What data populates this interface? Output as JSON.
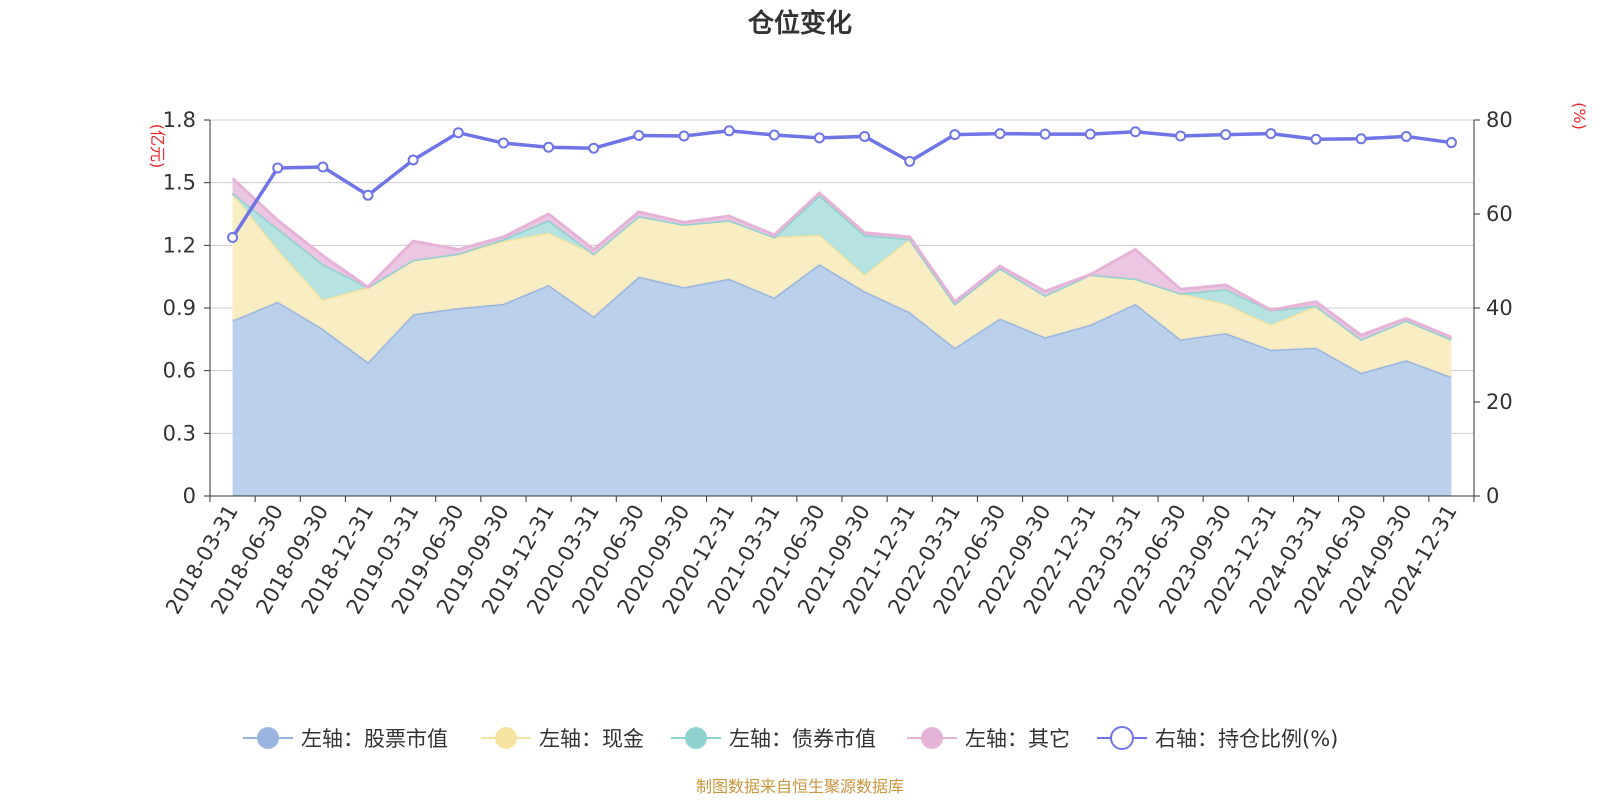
{
  "chart_data": {
    "type": "area",
    "title": "仓位变化",
    "left_unit": "(亿元)",
    "right_unit": "(%)",
    "ylim_left": [
      0,
      1.8
    ],
    "yticks_left": [
      "0",
      "0.3",
      "0.6",
      "0.9",
      "1.2",
      "1.5",
      "1.8"
    ],
    "ylim_right": [
      0,
      80
    ],
    "yticks_right": [
      "0",
      "20",
      "40",
      "60",
      "80"
    ],
    "categories": [
      "2018-03-31",
      "2018-06-30",
      "2018-09-30",
      "2018-12-31",
      "2019-03-31",
      "2019-06-30",
      "2019-09-30",
      "2019-12-31",
      "2020-03-31",
      "2020-06-30",
      "2020-09-30",
      "2020-12-31",
      "2021-03-31",
      "2021-06-30",
      "2021-09-30",
      "2021-12-31",
      "2022-03-31",
      "2022-06-30",
      "2022-09-30",
      "2022-12-31",
      "2023-03-31",
      "2023-06-30",
      "2023-09-30",
      "2023-12-31",
      "2024-03-31",
      "2024-06-30",
      "2024-09-30",
      "2024-12-31"
    ],
    "stacked_series": [
      {
        "name": "左轴：股票市值",
        "color": "#9ab6e0",
        "fill": "#b7cdea",
        "values": [
          0.84,
          0.93,
          0.8,
          0.64,
          0.87,
          0.9,
          0.92,
          1.01,
          0.86,
          1.05,
          1.0,
          1.04,
          0.95,
          1.11,
          0.98,
          0.88,
          0.71,
          0.85,
          0.76,
          0.82,
          0.92,
          0.75,
          0.78,
          0.7,
          0.71,
          0.59,
          0.65,
          0.57
        ]
      },
      {
        "name": "左轴：现金",
        "color": "#f7e3a1",
        "fill": "#f9ecc0",
        "values": [
          0.61,
          0.25,
          0.14,
          0.36,
          0.26,
          0.26,
          0.3,
          0.25,
          0.3,
          0.29,
          0.3,
          0.28,
          0.29,
          0.14,
          0.08,
          0.35,
          0.21,
          0.24,
          0.2,
          0.24,
          0.12,
          0.22,
          0.14,
          0.12,
          0.2,
          0.16,
          0.19,
          0.18
        ]
      },
      {
        "name": "左轴：债券市值",
        "color": "#8fd1cf",
        "fill": "#b2e1df",
        "values": [
          0,
          0.1,
          0.17,
          0,
          0,
          0,
          0.01,
          0.06,
          0,
          0,
          0,
          0,
          0,
          0.19,
          0.19,
          0,
          0,
          0,
          0,
          0,
          0,
          0,
          0.07,
          0.07,
          0,
          0,
          0,
          0
        ]
      },
      {
        "name": "左轴：其它",
        "color": "#e6b3d8",
        "fill": "#ebc4e1",
        "values": [
          0.07,
          0.04,
          0.04,
          0,
          0.09,
          0.02,
          0.01,
          0.03,
          0.02,
          0.02,
          0.01,
          0.02,
          0.01,
          0.01,
          0.01,
          0.01,
          0.01,
          0.01,
          0.02,
          0,
          0.14,
          0.02,
          0.02,
          0,
          0.02,
          0.02,
          0.01,
          0.01
        ]
      }
    ],
    "line_series": {
      "name": "右轴：持仓比例(%)",
      "color": "#6f75e6",
      "values": [
        55.0,
        69.8,
        70.0,
        64.0,
        71.5,
        77.3,
        75.1,
        74.2,
        74.0,
        76.7,
        76.6,
        77.7,
        76.8,
        76.2,
        76.5,
        71.2,
        76.9,
        77.1,
        77.0,
        77.0,
        77.5,
        76.6,
        76.9,
        77.1,
        75.9,
        76.0,
        76.5,
        75.2
      ]
    },
    "legend": [
      "左轴：股票市值",
      "左轴：现金",
      "左轴：债券市值",
      "左轴：其它",
      "右轴：持仓比例(%)"
    ],
    "legend_position": "bottom",
    "source": "制图数据来自恒生聚源数据库",
    "unit_color": "#e8262b",
    "source_color": "#c8963e",
    "grid_color": "#cccccc",
    "axis_color": "#333333"
  }
}
